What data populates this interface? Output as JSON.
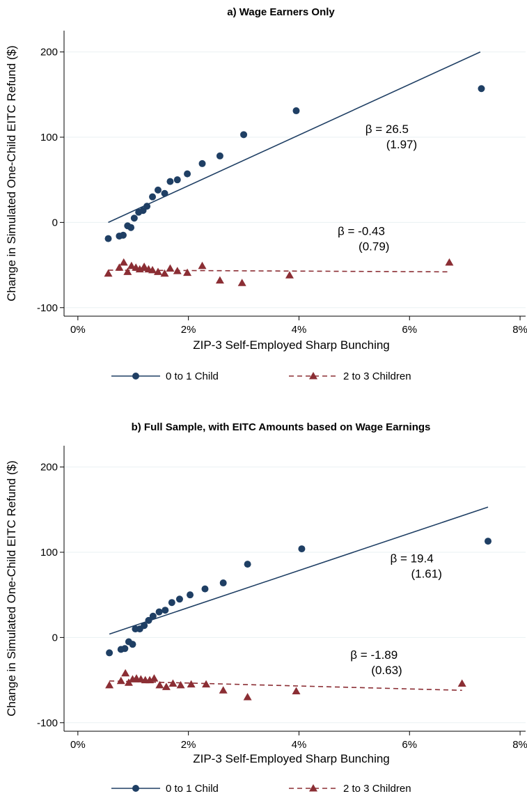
{
  "chart_data": [
    {
      "type": "scatter",
      "title": "a) Wage Earners Only",
      "xlabel": "ZIP-3 Self-Employed Sharp Bunching",
      "ylabel": "Change in Simulated One-Child EITC Refund ($)",
      "xlim": [
        -0.25,
        8.1
      ],
      "ylim": [
        -110,
        225
      ],
      "xticks": [
        0,
        2,
        4,
        6,
        8
      ],
      "xtick_labels": [
        "0%",
        "2%",
        "4%",
        "6%",
        "8%"
      ],
      "yticks": [
        -100,
        0,
        100,
        200
      ],
      "ytick_labels": [
        "-100",
        "0",
        "100",
        "200"
      ],
      "grid": true,
      "legend_position": "bottom",
      "series": [
        {
          "name": "0 to 1 Child",
          "color": "#1f3f64",
          "marker": "circle",
          "line_style": "solid",
          "points": [
            [
              0.55,
              -19
            ],
            [
              0.75,
              -16
            ],
            [
              0.82,
              -15
            ],
            [
              0.9,
              -4
            ],
            [
              0.96,
              -6
            ],
            [
              1.02,
              5
            ],
            [
              1.1,
              12
            ],
            [
              1.18,
              14
            ],
            [
              1.25,
              19
            ],
            [
              1.35,
              30
            ],
            [
              1.45,
              38
            ],
            [
              1.57,
              34
            ],
            [
              1.67,
              48
            ],
            [
              1.8,
              50
            ],
            [
              1.98,
              57
            ],
            [
              2.25,
              69
            ],
            [
              2.57,
              78
            ],
            [
              3.0,
              103
            ],
            [
              3.95,
              131
            ],
            [
              7.3,
              157
            ]
          ],
          "fit_line": [
            [
              0.55,
              0
            ],
            [
              7.28,
              200
            ]
          ],
          "annotation": {
            "beta": "β = 26.5",
            "se": "(1.97)",
            "x": 5.2,
            "y": 105
          }
        },
        {
          "name": "2 to 3 Children",
          "color": "#8b2e34",
          "marker": "triangle",
          "line_style": "dashed",
          "points": [
            [
              0.55,
              -60
            ],
            [
              0.75,
              -53
            ],
            [
              0.83,
              -47
            ],
            [
              0.9,
              -58
            ],
            [
              0.97,
              -51
            ],
            [
              1.05,
              -53
            ],
            [
              1.12,
              -55
            ],
            [
              1.2,
              -52
            ],
            [
              1.28,
              -55
            ],
            [
              1.35,
              -56
            ],
            [
              1.45,
              -58
            ],
            [
              1.57,
              -60
            ],
            [
              1.67,
              -54
            ],
            [
              1.8,
              -57
            ],
            [
              1.98,
              -59
            ],
            [
              2.25,
              -51
            ],
            [
              2.57,
              -68
            ],
            [
              2.97,
              -71
            ],
            [
              3.83,
              -62
            ],
            [
              6.72,
              -47
            ]
          ],
          "fit_line": [
            [
              0.55,
              -56
            ],
            [
              6.72,
              -58
            ]
          ],
          "annotation": {
            "beta": "β = -0.43",
            "se": "(0.79)",
            "x": 4.7,
            "y": -15
          }
        }
      ]
    },
    {
      "type": "scatter",
      "title": "b) Full Sample, with EITC Amounts based on Wage Earnings",
      "xlabel": "ZIP-3 Self-Employed Sharp Bunching",
      "ylabel": "Change in Simulated One-Child EITC Refund ($)",
      "xlim": [
        -0.25,
        8.1
      ],
      "ylim": [
        -110,
        225
      ],
      "xticks": [
        0,
        2,
        4,
        6,
        8
      ],
      "xtick_labels": [
        "0%",
        "2%",
        "4%",
        "6%",
        "8%"
      ],
      "yticks": [
        -100,
        0,
        100,
        200
      ],
      "ytick_labels": [
        "-100",
        "0",
        "100",
        "200"
      ],
      "grid": true,
      "legend_position": "bottom",
      "series": [
        {
          "name": "0 to 1 Child",
          "color": "#1f3f64",
          "marker": "circle",
          "line_style": "solid",
          "points": [
            [
              0.57,
              -18
            ],
            [
              0.78,
              -14
            ],
            [
              0.85,
              -13
            ],
            [
              0.92,
              -5
            ],
            [
              0.99,
              -8
            ],
            [
              1.04,
              10
            ],
            [
              1.12,
              10
            ],
            [
              1.2,
              14
            ],
            [
              1.28,
              20
            ],
            [
              1.36,
              25
            ],
            [
              1.47,
              30
            ],
            [
              1.58,
              32
            ],
            [
              1.7,
              41
            ],
            [
              1.84,
              45
            ],
            [
              2.03,
              50
            ],
            [
              2.3,
              57
            ],
            [
              2.63,
              64
            ],
            [
              3.07,
              86
            ],
            [
              4.05,
              104
            ],
            [
              7.42,
              113
            ]
          ],
          "fit_line": [
            [
              0.57,
              4
            ],
            [
              7.42,
              153
            ]
          ],
          "annotation": {
            "beta": "β = 19.4",
            "se": "(1.61)",
            "x": 5.65,
            "y": 88
          }
        },
        {
          "name": "2 to 3 Children",
          "color": "#8b2e34",
          "marker": "triangle",
          "line_style": "dashed",
          "points": [
            [
              0.57,
              -56
            ],
            [
              0.78,
              -51
            ],
            [
              0.86,
              -42
            ],
            [
              0.92,
              -53
            ],
            [
              0.99,
              -49
            ],
            [
              1.06,
              -48
            ],
            [
              1.14,
              -49
            ],
            [
              1.22,
              -50
            ],
            [
              1.3,
              -50
            ],
            [
              1.38,
              -48
            ],
            [
              1.48,
              -56
            ],
            [
              1.6,
              -58
            ],
            [
              1.72,
              -54
            ],
            [
              1.86,
              -56
            ],
            [
              2.05,
              -55
            ],
            [
              2.32,
              -55
            ],
            [
              2.63,
              -62
            ],
            [
              3.07,
              -70
            ],
            [
              3.95,
              -63
            ],
            [
              6.95,
              -54
            ]
          ],
          "fit_line": [
            [
              0.57,
              -51
            ],
            [
              6.95,
              -62
            ]
          ],
          "annotation": {
            "beta": "β = -1.89",
            "se": "(0.63)",
            "x": 4.93,
            "y": -25
          }
        }
      ]
    }
  ]
}
